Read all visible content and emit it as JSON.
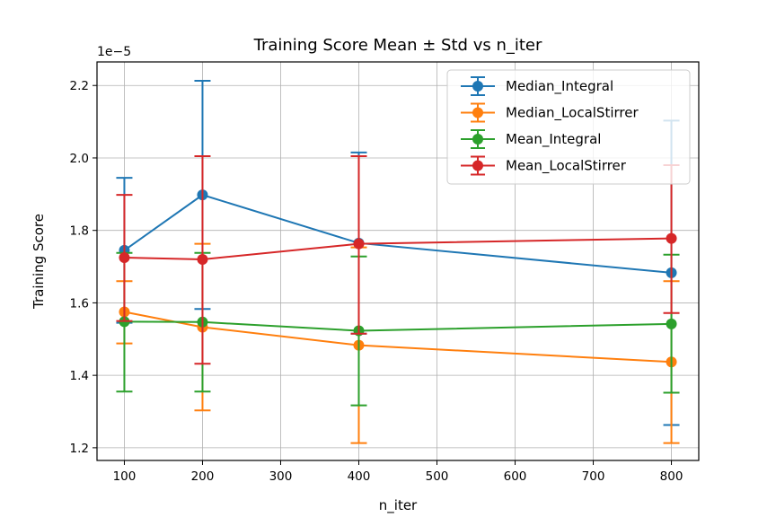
{
  "chart_data": {
    "type": "line",
    "title": "Training Score Mean ± Std vs n_iter",
    "xlabel": "n_iter",
    "ylabel": "Training Score",
    "y_offset_label": "1e−5",
    "xlim": [
      65,
      835
    ],
    "ylim": [
      1.165,
      2.265
    ],
    "x_ticks": [
      100,
      200,
      300,
      400,
      500,
      600,
      700,
      800
    ],
    "y_ticks": [
      1.2,
      1.4,
      1.6,
      1.8,
      2.0,
      2.2
    ],
    "y_tick_labels": [
      "1.2",
      "1.4",
      "1.6",
      "1.8",
      "2.0",
      "2.2"
    ],
    "grid": true,
    "legend_position": "upper right",
    "x": [
      100,
      200,
      400,
      800
    ],
    "series": [
      {
        "name": "Median_Integral",
        "color": "#1f77b4",
        "values": [
          1.745,
          1.898,
          1.765,
          1.683
        ],
        "err_lower": [
          1.545,
          1.583,
          1.515,
          1.263
        ],
        "err_upper": [
          1.945,
          2.213,
          2.015,
          2.103
        ]
      },
      {
        "name": "Median_LocalStirrer",
        "color": "#ff7f0e",
        "values": [
          1.575,
          1.533,
          1.483,
          1.437
        ],
        "err_lower": [
          1.488,
          1.303,
          1.213,
          1.213
        ],
        "err_upper": [
          1.66,
          1.763,
          1.753,
          1.66
        ]
      },
      {
        "name": "Mean_Integral",
        "color": "#2ca02c",
        "values": [
          1.548,
          1.547,
          1.523,
          1.542
        ],
        "err_lower": [
          1.355,
          1.355,
          1.317,
          1.352
        ],
        "err_upper": [
          1.738,
          1.738,
          1.728,
          1.733
        ]
      },
      {
        "name": "Mean_LocalStirrer",
        "color": "#d62728",
        "values": [
          1.725,
          1.72,
          1.763,
          1.778
        ],
        "err_lower": [
          1.55,
          1.432,
          1.515,
          1.572
        ],
        "err_upper": [
          1.898,
          2.005,
          2.005,
          1.98
        ]
      }
    ]
  }
}
